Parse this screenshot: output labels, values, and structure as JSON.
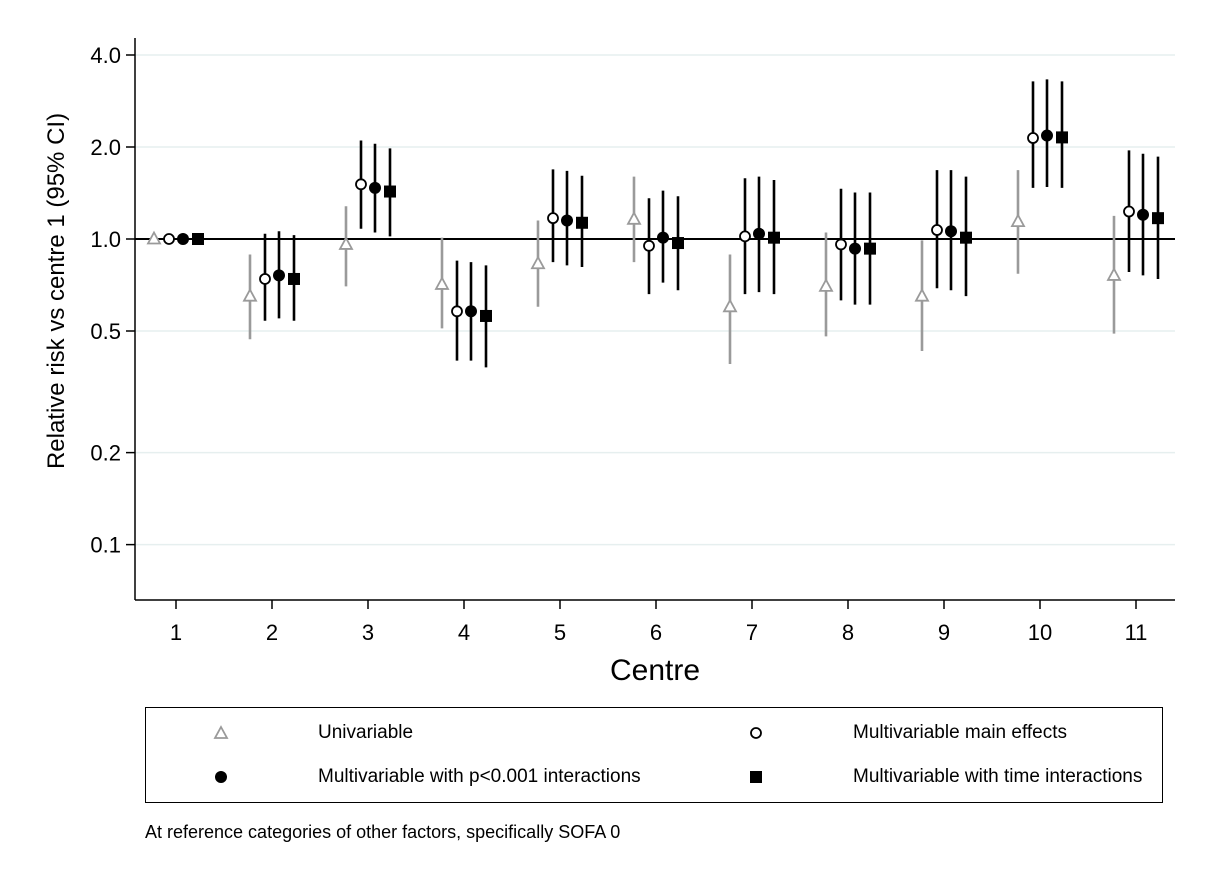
{
  "chart_data": {
    "type": "scatter",
    "xlabel": "Centre",
    "ylabel": "Relative risk vs centre 1 (95% CI)",
    "y_scale": "log",
    "ylim": [
      0.09,
      4.4
    ],
    "y_ticks": [
      4.0,
      2.0,
      1.0,
      0.5,
      0.2,
      0.1
    ],
    "y_tick_labels": [
      "4.0",
      "2.0",
      "1.0",
      "0.5",
      "0.2",
      "0.1"
    ],
    "x_ticks": [
      1,
      2,
      3,
      4,
      5,
      6,
      7,
      8,
      9,
      10,
      11
    ],
    "x_tick_labels": [
      "1",
      "2",
      "3",
      "4",
      "5",
      "6",
      "7",
      "8",
      "9",
      "10",
      "11"
    ],
    "reference_line": 1.0,
    "grid": "horizontal",
    "legend_position": "bottom",
    "series": [
      {
        "name": "Univariable",
        "marker": "triangle-open",
        "color": "#9a9a9a",
        "x": [
          1,
          2,
          3,
          4,
          5,
          6,
          7,
          8,
          9,
          10,
          11
        ],
        "estimate": [
          1.0,
          0.65,
          0.96,
          0.71,
          0.83,
          1.16,
          0.6,
          0.7,
          0.65,
          1.14,
          0.76
        ],
        "lower": [
          1.0,
          0.47,
          0.7,
          0.51,
          0.6,
          0.84,
          0.39,
          0.48,
          0.43,
          0.77,
          0.49
        ],
        "upper": [
          1.0,
          0.89,
          1.28,
          1.01,
          1.15,
          1.6,
          0.89,
          1.05,
          0.99,
          1.68,
          1.19
        ]
      },
      {
        "name": "Multivariable main effects",
        "marker": "circle-open",
        "color": "#000000",
        "x": [
          1,
          2,
          3,
          4,
          5,
          6,
          7,
          8,
          9,
          10,
          11
        ],
        "estimate": [
          1.0,
          0.74,
          1.51,
          0.58,
          1.17,
          0.95,
          1.02,
          0.96,
          1.07,
          2.14,
          1.23
        ],
        "lower": [
          1.0,
          0.54,
          1.08,
          0.4,
          0.84,
          0.66,
          0.66,
          0.63,
          0.69,
          1.47,
          0.78
        ],
        "upper": [
          1.0,
          1.04,
          2.1,
          0.85,
          1.69,
          1.36,
          1.58,
          1.46,
          1.68,
          3.28,
          1.95
        ]
      },
      {
        "name": "Multivariable with p<0.001 interactions",
        "marker": "circle-filled",
        "color": "#000000",
        "x": [
          1,
          2,
          3,
          4,
          5,
          6,
          7,
          8,
          9,
          10,
          11
        ],
        "estimate": [
          1.0,
          0.76,
          1.47,
          0.58,
          1.15,
          1.01,
          1.04,
          0.93,
          1.06,
          2.18,
          1.2
        ],
        "lower": [
          1.0,
          0.55,
          1.05,
          0.4,
          0.82,
          0.72,
          0.67,
          0.61,
          0.68,
          1.48,
          0.76
        ],
        "upper": [
          1.0,
          1.06,
          2.05,
          0.84,
          1.67,
          1.44,
          1.6,
          1.42,
          1.68,
          3.33,
          1.9
        ]
      },
      {
        "name": "Multivariable with time interactions",
        "marker": "square-filled",
        "color": "#000000",
        "x": [
          1,
          2,
          3,
          4,
          5,
          6,
          7,
          8,
          9,
          10,
          11
        ],
        "estimate": [
          1.0,
          0.74,
          1.43,
          0.56,
          1.13,
          0.97,
          1.01,
          0.93,
          1.01,
          2.15,
          1.17
        ],
        "lower": [
          1.0,
          0.54,
          1.02,
          0.38,
          0.81,
          0.68,
          0.66,
          0.61,
          0.65,
          1.47,
          0.74
        ],
        "upper": [
          1.0,
          1.03,
          1.98,
          0.82,
          1.61,
          1.38,
          1.56,
          1.42,
          1.6,
          3.28,
          1.86
        ]
      }
    ]
  },
  "legend": {
    "items": [
      {
        "label": "Univariable",
        "marker": "triangle-open"
      },
      {
        "label": "Multivariable main effects",
        "marker": "circle-open"
      },
      {
        "label": "Multivariable with p<0.001 interactions",
        "marker": "circle-filled"
      },
      {
        "label": "Multivariable with time interactions",
        "marker": "square-filled"
      }
    ]
  },
  "footnote": "At reference categories of other factors, specifically SOFA 0"
}
